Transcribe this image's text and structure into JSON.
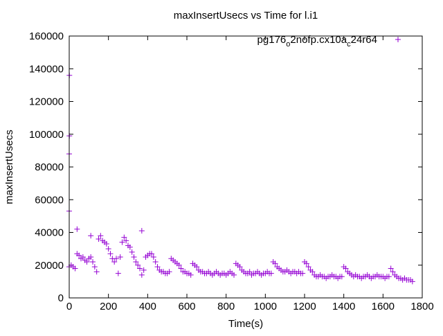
{
  "chart_data": {
    "type": "scatter",
    "title": "maxInsertUsecs vs Time for l.i1",
    "xlabel": "Time(s)",
    "ylabel": "maxInsertUsecs",
    "xlim": [
      0,
      1800
    ],
    "ylim": [
      0,
      160000
    ],
    "xticks": [
      0,
      200,
      400,
      600,
      800,
      1000,
      1200,
      1400,
      1600,
      1800
    ],
    "yticks": [
      0,
      20000,
      40000,
      60000,
      80000,
      100000,
      120000,
      140000,
      160000
    ],
    "grid": false,
    "legend_position": "top-right",
    "series": [
      {
        "name_main": "pg176",
        "name_sub1": "o",
        "name_mid": "2nofp.cx10a",
        "name_sub2": "c",
        "name_end": "24r64",
        "color": "#9400d3",
        "marker": "plus",
        "x": [
          0,
          0,
          1,
          1,
          40,
          110,
          370,
          0,
          10,
          20,
          30,
          40,
          50,
          60,
          70,
          80,
          90,
          100,
          110,
          120,
          130,
          140,
          150,
          160,
          170,
          180,
          190,
          200,
          210,
          220,
          230,
          240,
          250,
          260,
          270,
          280,
          290,
          300,
          310,
          320,
          330,
          340,
          350,
          360,
          370,
          380,
          390,
          400,
          410,
          420,
          430,
          440,
          450,
          460,
          470,
          480,
          490,
          500,
          510,
          520,
          530,
          540,
          550,
          560,
          570,
          580,
          590,
          600,
          610,
          620,
          630,
          640,
          650,
          660,
          670,
          680,
          690,
          700,
          710,
          720,
          730,
          740,
          750,
          760,
          770,
          780,
          790,
          800,
          810,
          820,
          830,
          840,
          850,
          860,
          870,
          880,
          890,
          900,
          910,
          920,
          930,
          940,
          950,
          960,
          970,
          980,
          990,
          1000,
          1010,
          1020,
          1030,
          1040,
          1050,
          1060,
          1070,
          1080,
          1090,
          1100,
          1110,
          1120,
          1130,
          1140,
          1150,
          1160,
          1170,
          1180,
          1190,
          1200,
          1210,
          1220,
          1230,
          1240,
          1250,
          1260,
          1270,
          1280,
          1290,
          1300,
          1310,
          1320,
          1330,
          1340,
          1350,
          1360,
          1370,
          1380,
          1390,
          1400,
          1410,
          1420,
          1430,
          1440,
          1450,
          1460,
          1470,
          1480,
          1490,
          1500,
          1510,
          1520,
          1530,
          1540,
          1550,
          1560,
          1570,
          1580,
          1590,
          1600,
          1610,
          1620,
          1630,
          1640,
          1650,
          1660,
          1670,
          1680,
          1690,
          1700,
          1710,
          1720,
          1730,
          1740,
          1750
        ],
        "y": [
          53000,
          88000,
          99000,
          136000,
          42000,
          38000,
          41000,
          19000,
          20000,
          19000,
          18000,
          27000,
          26000,
          24000,
          25000,
          23000,
          22000,
          24000,
          25000,
          22000,
          19000,
          16000,
          36000,
          38000,
          35000,
          34000,
          33000,
          30000,
          27000,
          24000,
          22000,
          24000,
          15000,
          25000,
          34000,
          37000,
          35000,
          32000,
          31000,
          28000,
          25000,
          22000,
          20000,
          18000,
          14000,
          17000,
          25000,
          26000,
          27000,
          27000,
          25000,
          22000,
          19000,
          17000,
          16000,
          16000,
          15000,
          15000,
          16000,
          24000,
          23000,
          22000,
          21000,
          20000,
          18000,
          16000,
          16000,
          15000,
          15000,
          14000,
          21000,
          20000,
          19000,
          17000,
          16000,
          16000,
          15000,
          15000,
          16000,
          15000,
          14000,
          15000,
          16000,
          15000,
          14000,
          15000,
          15000,
          14000,
          15000,
          16000,
          15000,
          14000,
          21000,
          20000,
          19000,
          17000,
          16000,
          15000,
          15000,
          16000,
          14000,
          15000,
          15000,
          16000,
          15000,
          14000,
          15000,
          15000,
          16000,
          15000,
          15000,
          22000,
          21000,
          19000,
          18000,
          17000,
          16000,
          16000,
          17000,
          16000,
          15000,
          16000,
          16000,
          15000,
          16000,
          15000,
          15000,
          22000,
          21000,
          19000,
          17000,
          16000,
          14000,
          13000,
          13000,
          14000,
          13000,
          13000,
          12000,
          13000,
          13000,
          14000,
          13000,
          13000,
          12000,
          13000,
          13000,
          19000,
          18000,
          16000,
          15000,
          14000,
          13000,
          14000,
          13000,
          13000,
          12000,
          13000,
          13000,
          14000,
          13000,
          12000,
          13000,
          13000,
          14000,
          13000,
          13000,
          13000,
          12000,
          13000,
          13000,
          18000,
          16000,
          14000,
          13000,
          12000,
          12000,
          11000,
          12000,
          11000,
          11000,
          11000,
          10000
        ]
      }
    ]
  }
}
